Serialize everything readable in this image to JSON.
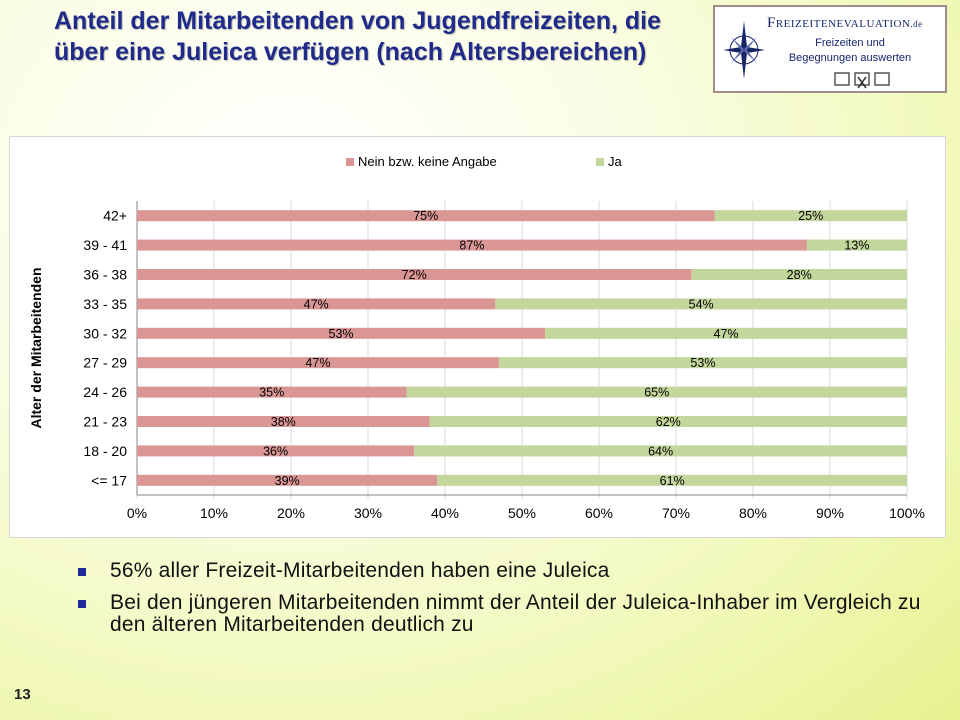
{
  "slide": {
    "title": "Anteil der Mitarbeitenden von Jugendfreizeiten, die über eine Juleica verfügen (nach Altersbereichen)",
    "page_number": "13"
  },
  "logo": {
    "brand": "Freizeitenevaluation",
    "tld": ".de",
    "line1": "Freizeiten und",
    "line2": "Begegnungen auswerten",
    "icon": "compass-rose-icon"
  },
  "bullets": [
    "56% aller Freizeit-Mitarbeitenden haben eine Juleica",
    "Bei den jüngeren Mitarbeitenden nimmt der Anteil der Juleica-Inhaber im Vergleich zu den älteren Mitarbeitenden deutlich zu"
  ],
  "chart_data": {
    "type": "bar",
    "orientation": "horizontal",
    "stacked": "percent",
    "categories": [
      "42+",
      "39 - 41",
      "36 - 38",
      "33 - 35",
      "30 - 32",
      "27 - 29",
      "24 - 26",
      "21 - 23",
      "18 - 20",
      "<= 17"
    ],
    "series": [
      {
        "name": "Nein bzw. keine Angabe",
        "color": "#d99694",
        "values": [
          75,
          87,
          72,
          47,
          53,
          47,
          35,
          38,
          36,
          39
        ]
      },
      {
        "name": "Ja",
        "color": "#c3d69b",
        "values": [
          25,
          13,
          28,
          54,
          47,
          53,
          65,
          62,
          64,
          61
        ]
      }
    ],
    "data_labels": {
      "Nein bzw. keine Angabe": [
        "75%",
        "87%",
        "72%",
        "47%",
        "53%",
        "47%",
        "35%",
        "38%",
        "36%",
        "39%"
      ],
      "Ja": [
        "25%",
        "13%",
        "28%",
        "54%",
        "47%",
        "53%",
        "65%",
        "62%",
        "64%",
        "61%"
      ]
    },
    "ylabel": "Alter der Mitarbeitenden",
    "xlabel": "",
    "xlim": [
      0,
      100
    ],
    "xticks": [
      "0%",
      "10%",
      "20%",
      "30%",
      "40%",
      "50%",
      "60%",
      "70%",
      "80%",
      "90%",
      "100%"
    ],
    "legend": "top",
    "grid": true,
    "gridline_color": "#d9d9d9"
  }
}
